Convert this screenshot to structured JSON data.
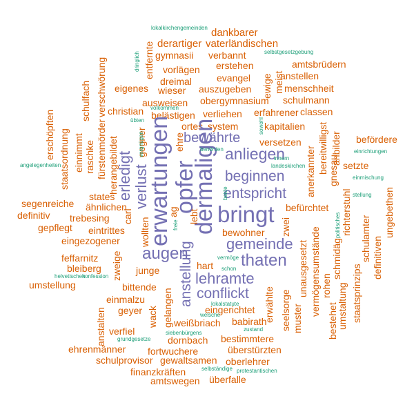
{
  "palette": {
    "purple": "#7470b3",
    "orange": "#d95f02",
    "green": "#1b9e77"
  },
  "words": [
    "lokalkirchengemeinden",
    "dankbarer",
    "derartiger",
    "vaterländischen",
    "selbstgesetzgebung",
    "gymnasii",
    "verbannt",
    "erstehen",
    "amtsbrüdern",
    "vorlägen",
    "anstellen",
    "dreimal",
    "evangel",
    "menschheit",
    "wieser",
    "eigenes",
    "auszugeben",
    "ausweisen",
    "obergymnasium",
    "schulmann",
    "christian",
    "belästigen",
    "verliehen",
    "erfahrener",
    "classen",
    "ortes",
    "system",
    "kapitalien",
    "bewährte",
    "versetzen",
    "anliegen",
    "befördere",
    "beginnen",
    "setzte",
    "entspricht",
    "bringt",
    "dermaligen",
    "opfer",
    "erwartungen",
    "erledigt",
    "verlust",
    "segenreiche",
    "trebesing",
    "ähnlichen",
    "states",
    "definitiv",
    "befürchtet",
    "gepflegt",
    "eintrittes",
    "eingezogener",
    "gemeinde",
    "bewohner",
    "augen",
    "thaten",
    "lehramte",
    "conflickt",
    "feffarnitz",
    "bleiberg",
    "junge",
    "hart",
    "anstellung",
    "umstellung",
    "bittende",
    "einmalzu",
    "geyer",
    "eingerichtet",
    "weißbriach",
    "verfiel",
    "babirath",
    "dornbach",
    "bestimmtere",
    "ehrenmänner",
    "fortwuchere",
    "überstürzten",
    "schulprovisor",
    "gewaltsamen",
    "oberlehrer",
    "finanzkräften",
    "amtswegen",
    "überfalle",
    "selbständige",
    "protestantischen",
    "grundgesetze",
    "helvetischen",
    "konfession",
    "siebenbürgens",
    "zustand",
    "welsche",
    "lokalstatute",
    "angelegenheiten",
    "erschöpften",
    "staatsordnung",
    "einnimmt",
    "raschke",
    "fürstenmörder",
    "herangebildet",
    "schulfach",
    "verschwörung",
    "entfernte",
    "ewige",
    "meist",
    "zwei",
    "vermögensumstände",
    "rohen",
    "unausgesetzt",
    "muster",
    "erwählte",
    "seelsorge",
    "schmidäg",
    "richterstuhl",
    "gnesau",
    "anerkannter",
    "bereitwilligst",
    "anbilder",
    "staatsprinzips",
    "umstaltung",
    "bestehet",
    "schulamter",
    "definitiven",
    "ungebethen",
    "wollten",
    "gelangen",
    "zweige",
    "anstalten",
    "wack",
    "ag",
    "lebt",
    "carl",
    "gegner",
    "ehre",
    "freie",
    "vergnügen",
    "übten",
    "volkommen",
    "einrichtungen",
    "einmischung",
    "stellung",
    "landeskirchen",
    "innern",
    "benörden",
    "schon",
    "politisches",
    "vermöge",
    "sowohl",
    "beide",
    "dringlich"
  ]
}
